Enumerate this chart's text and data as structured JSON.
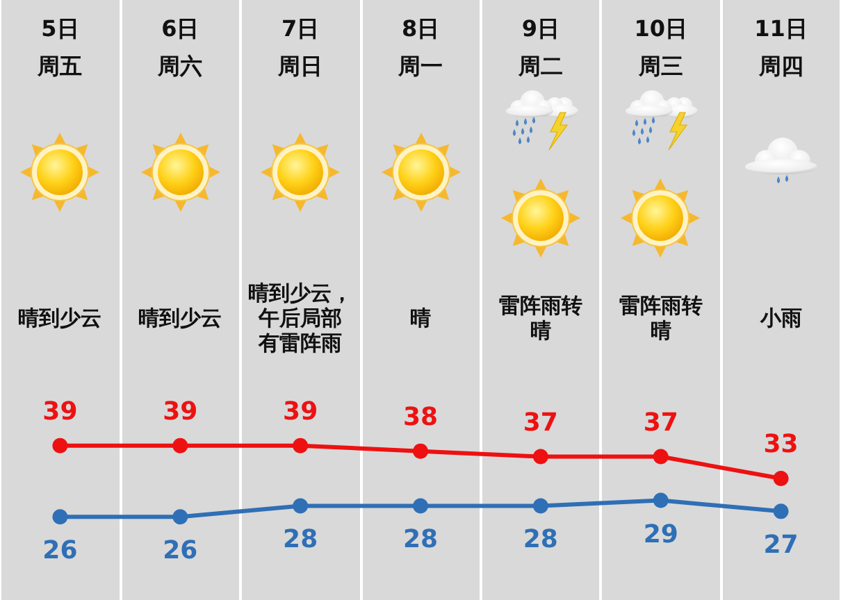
{
  "chart_data": {
    "type": "line",
    "categories": [
      "5日周五",
      "6日周六",
      "7日周日",
      "8日周一",
      "9日周二",
      "10日周三",
      "11日周四"
    ],
    "series": [
      {
        "color": "#ee1111",
        "values": [
          39,
          39,
          39,
          38,
          37,
          37,
          33
        ]
      },
      {
        "color": "#2f6fb5",
        "values": [
          26,
          26,
          28,
          28,
          28,
          29,
          27
        ]
      }
    ],
    "data_labels": true,
    "grid": "x",
    "marker": "circle",
    "line_style": "solid",
    "tick_labels": "x",
    "annotations": [
      "晴到少云",
      "晴到少云",
      "晴到少云，午后局部有雷阵雨",
      "晴",
      "雷阵雨转晴",
      "雷阵雨转晴",
      "小雨"
    ]
  }
}
